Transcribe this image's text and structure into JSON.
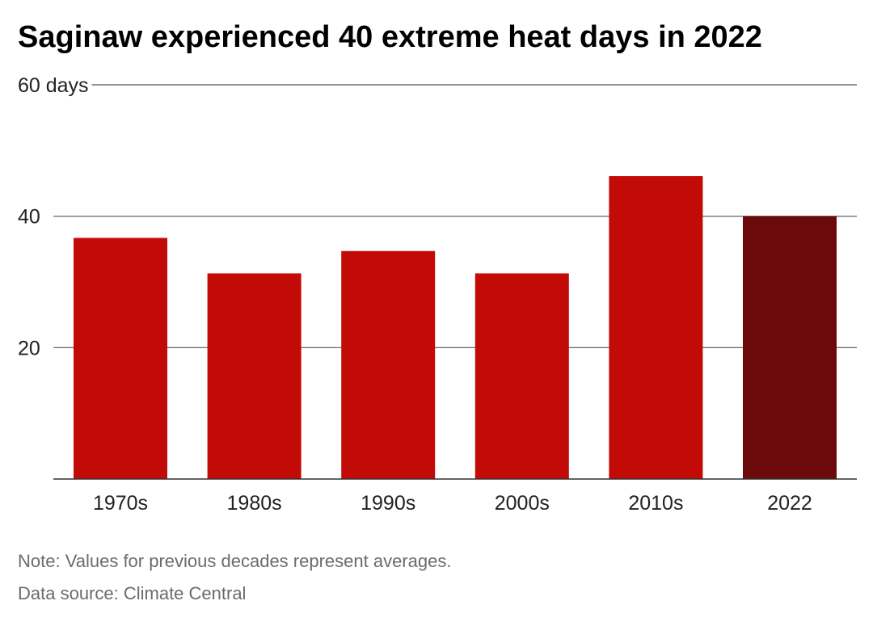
{
  "chart_data": {
    "type": "bar",
    "title": "Saginaw experienced 40 extreme heat days in 2022",
    "categories": [
      "1970s",
      "1980s",
      "1990s",
      "2000s",
      "2010s",
      "2022"
    ],
    "values": [
      36.7,
      31.3,
      34.7,
      31.3,
      46.1,
      40
    ],
    "ylim": [
      0,
      60
    ],
    "y_ticks": [
      20,
      40,
      60
    ],
    "y_tick_labels": [
      "20",
      "40",
      "60 days"
    ],
    "xlabel": "",
    "ylabel": "",
    "grid": true,
    "bar_colors": [
      "#c20a06",
      "#c20a06",
      "#c20a06",
      "#c20a06",
      "#c20a06",
      "#6b0a0a"
    ],
    "highlight_category": "2022",
    "note": "Note: Values for previous decades represent averages.",
    "source": "Data source: Climate Central"
  }
}
